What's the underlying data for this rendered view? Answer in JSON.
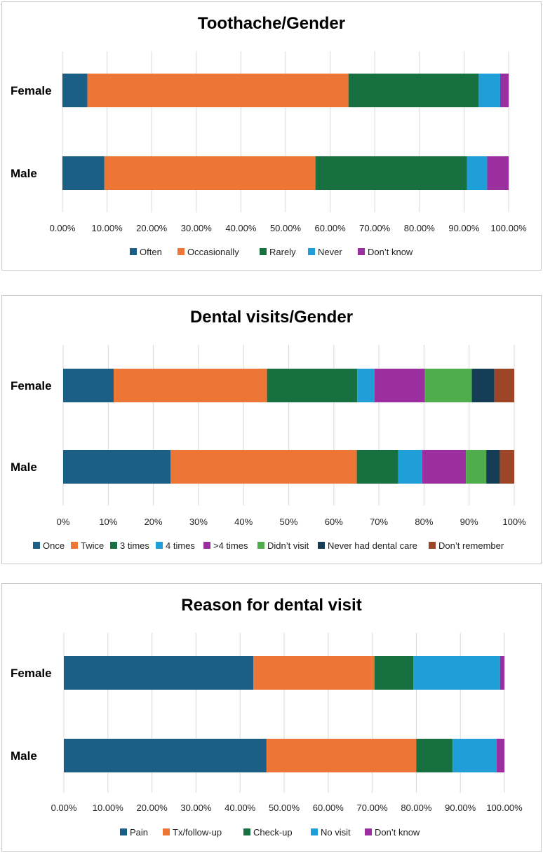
{
  "chart_data": [
    {
      "type": "bar",
      "orientation": "horizontal",
      "stacked": true,
      "title": "Toothache/Gender",
      "categories": [
        "Female",
        "Male"
      ],
      "xlim": [
        0,
        100
      ],
      "ticks": [
        "0.00%",
        "10.00%",
        "20.00%",
        "30.00%",
        "40.00%",
        "50.00%",
        "60.00%",
        "70.00%",
        "80.00%",
        "90.00%",
        "100.00%"
      ],
      "grid": true,
      "legend_position": "bottom",
      "series": [
        {
          "name": "Often",
          "color": "#1b5f86",
          "values": [
            5.6,
            9.4
          ]
        },
        {
          "name": "Occasionally",
          "color": "#ed7535",
          "values": [
            58.5,
            47.3
          ]
        },
        {
          "name": "Rarely",
          "color": "#177040",
          "values": [
            29.2,
            34.0
          ]
        },
        {
          "name": "Never",
          "color": "#1f9ed8",
          "values": [
            4.8,
            4.5
          ]
        },
        {
          "name": "Don’t know",
          "color": "#9c2fa0",
          "values": [
            1.9,
            4.8
          ]
        }
      ]
    },
    {
      "type": "bar",
      "orientation": "horizontal",
      "stacked": true,
      "title": "Dental visits/Gender",
      "categories": [
        "Female",
        "Male"
      ],
      "xlim": [
        0,
        100
      ],
      "ticks": [
        "0%",
        "10%",
        "20%",
        "30%",
        "40%",
        "50%",
        "60%",
        "70%",
        "80%",
        "90%",
        "100%"
      ],
      "grid": true,
      "legend_position": "bottom",
      "series": [
        {
          "name": "Once",
          "color": "#1b5f86",
          "values": [
            11.2,
            23.8
          ]
        },
        {
          "name": "Twice",
          "color": "#ed7535",
          "values": [
            34.0,
            41.3
          ]
        },
        {
          "name": "3 times",
          "color": "#177040",
          "values": [
            20.0,
            9.2
          ]
        },
        {
          "name": "4 times",
          "color": "#1f9ed8",
          "values": [
            3.8,
            5.3
          ]
        },
        {
          "name": ">4 times",
          "color": "#9c2fa0",
          "values": [
            11.2,
            9.7
          ]
        },
        {
          "name": "Didn’t visit",
          "color": "#4fad4c",
          "values": [
            10.4,
            4.5
          ]
        },
        {
          "name": "Never had dental care",
          "color": "#153d55",
          "values": [
            5.0,
            3.0
          ]
        },
        {
          "name": "Don’t remember",
          "color": "#9c4527",
          "values": [
            4.4,
            3.2
          ]
        }
      ]
    },
    {
      "type": "bar",
      "orientation": "horizontal",
      "stacked": true,
      "title": "Reason for dental visit",
      "categories": [
        "Female",
        "Male"
      ],
      "xlim": [
        0,
        100
      ],
      "ticks": [
        "0.00%",
        "10.00%",
        "20.00%",
        "30.00%",
        "40.00%",
        "50.00%",
        "60.00%",
        "70.00%",
        "80.00%",
        "90.00%",
        "100.00%"
      ],
      "grid": true,
      "legend_position": "bottom",
      "series": [
        {
          "name": "Pain",
          "color": "#1b5f86",
          "values": [
            43.0,
            46.0
          ]
        },
        {
          "name": "Tx/follow-up",
          "color": "#ed7535",
          "values": [
            27.5,
            34.0
          ]
        },
        {
          "name": "Check-up",
          "color": "#177040",
          "values": [
            8.8,
            8.2
          ]
        },
        {
          "name": "No visit",
          "color": "#1f9ed8",
          "values": [
            19.7,
            10.0
          ]
        },
        {
          "name": "Don’t know",
          "color": "#9c2fa0",
          "values": [
            1.0,
            1.8
          ]
        }
      ]
    }
  ]
}
